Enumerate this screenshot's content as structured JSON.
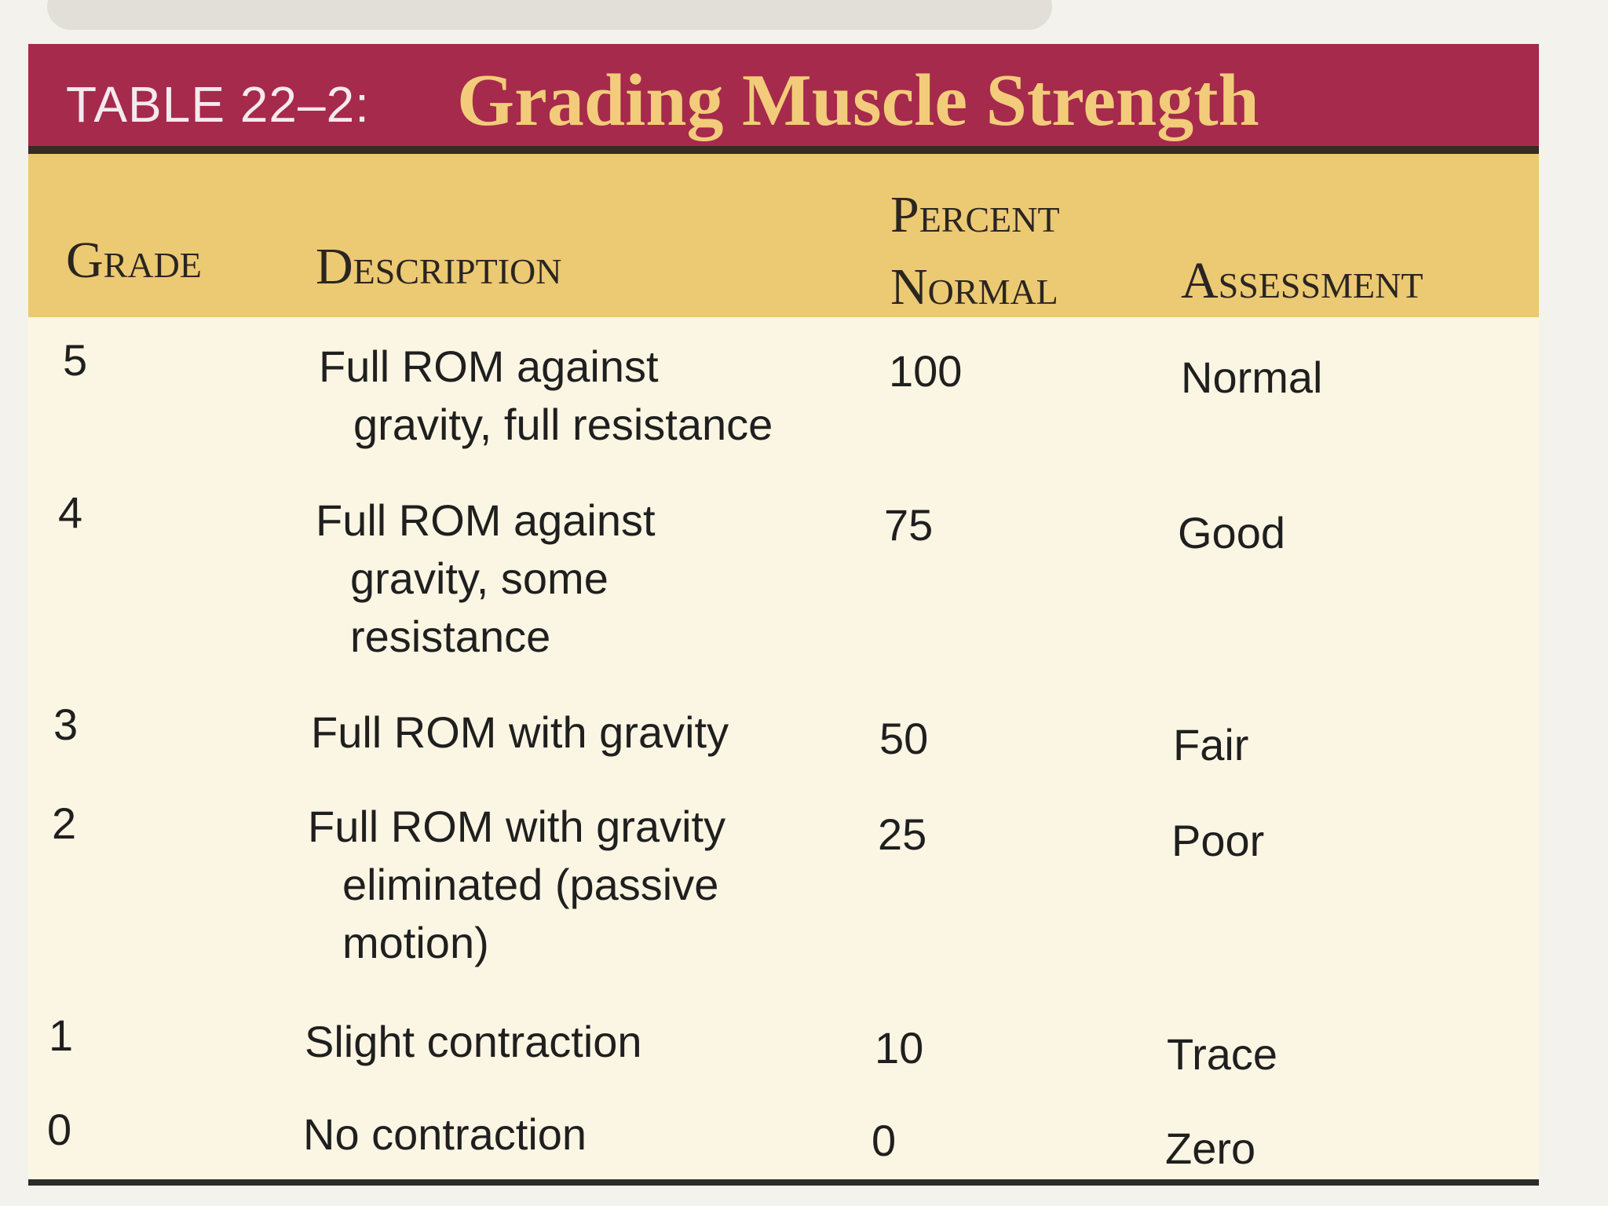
{
  "table": {
    "number_label": "TABLE 22–2:",
    "title": "Grading Muscle Strength",
    "headers": {
      "grade": "Grade",
      "description": "Description",
      "percent_line1": "Percent",
      "percent_line2": "Normal",
      "assessment": "Assessment"
    },
    "rows": [
      {
        "grade": "5",
        "desc_line1": "Full ROM against",
        "desc_line2": "gravity, full resistance",
        "desc_line3": "",
        "percent": "100",
        "assessment": "Normal"
      },
      {
        "grade": "4",
        "desc_line1": "Full ROM against",
        "desc_line2": "gravity, some",
        "desc_line3": "resistance",
        "percent": "75",
        "assessment": "Good"
      },
      {
        "grade": "3",
        "desc_line1": "Full ROM with gravity",
        "desc_line2": "",
        "desc_line3": "",
        "percent": "50",
        "assessment": "Fair"
      },
      {
        "grade": "2",
        "desc_line1": "Full ROM with gravity",
        "desc_line2": "eliminated (passive",
        "desc_line3": "motion)",
        "percent": "25",
        "assessment": "Poor"
      },
      {
        "grade": "1",
        "desc_line1": "Slight contraction",
        "desc_line2": "",
        "desc_line3": "",
        "percent": "10",
        "assessment": "Trace"
      },
      {
        "grade": "0",
        "desc_line1": "No contraction",
        "desc_line2": "",
        "desc_line3": "",
        "percent": "0",
        "assessment": "Zero"
      }
    ]
  }
}
